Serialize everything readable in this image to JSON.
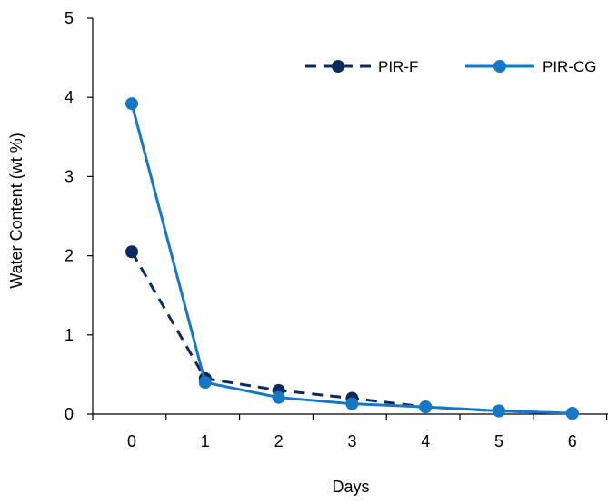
{
  "chart_data": {
    "type": "line",
    "title": "",
    "xlabel": "Days",
    "ylabel": "Water Content (wt %)",
    "x": [
      0,
      1,
      2,
      3,
      4,
      5,
      6
    ],
    "x_tick_labels": [
      "0",
      "1",
      "2",
      "3",
      "4",
      "5",
      "6"
    ],
    "y_tick_labels": [
      "0",
      "1",
      "2",
      "3",
      "4",
      "5"
    ],
    "ylim": [
      0,
      5
    ],
    "grid": false,
    "legend_position": "top-right",
    "series": [
      {
        "name": "PIR-F",
        "values": [
          2.05,
          0.45,
          0.3,
          0.2,
          0.09,
          0.04,
          0.01
        ],
        "color": "#0d2a5e",
        "line_style": "dashed",
        "marker": "circle"
      },
      {
        "name": "PIR-CG",
        "values": [
          3.92,
          0.4,
          0.21,
          0.13,
          0.09,
          0.04,
          0.01
        ],
        "color": "#1677c4",
        "line_style": "solid",
        "marker": "circle"
      }
    ]
  }
}
